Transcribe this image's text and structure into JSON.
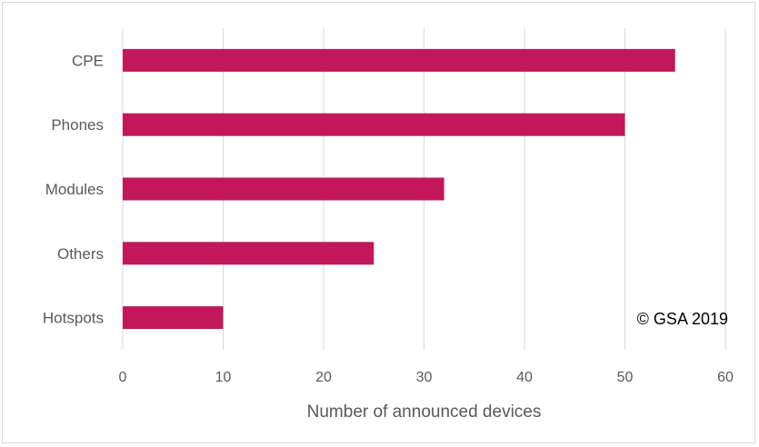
{
  "chart_data": {
    "type": "bar",
    "orientation": "horizontal",
    "categories": [
      "CPE",
      "Phones",
      "Modules",
      "Others",
      "Hotspots"
    ],
    "values": [
      55,
      50,
      32,
      25,
      10
    ],
    "xlabel": "Number of announced devices",
    "ylabel": "",
    "xlim": [
      0,
      60
    ],
    "xticks": [
      0,
      10,
      20,
      30,
      40,
      50,
      60
    ],
    "grid": true,
    "bar_color": "#c2185b",
    "annotation": "© GSA 2019"
  }
}
